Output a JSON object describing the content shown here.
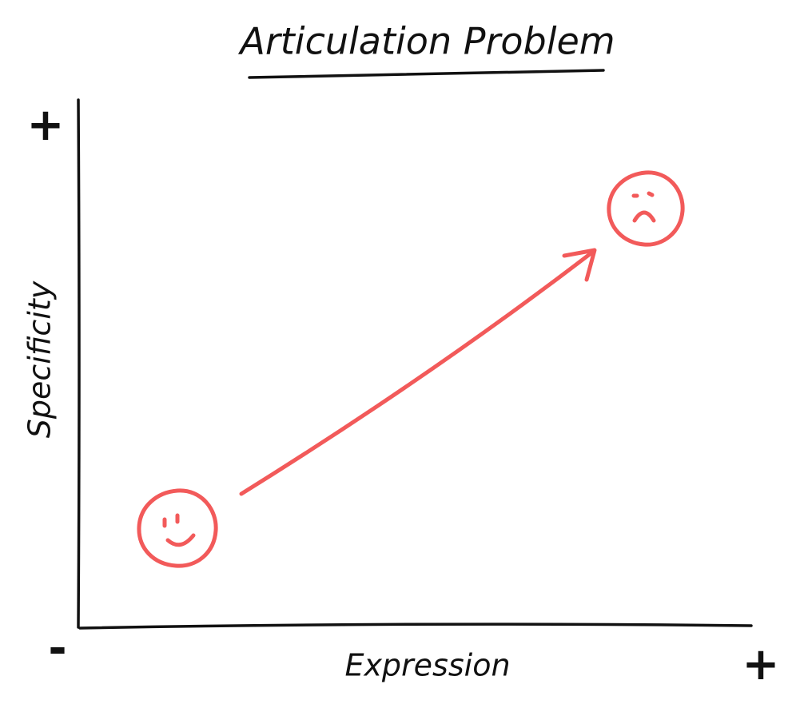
{
  "title": "Articulation Problem",
  "y_axis": {
    "label": "Specificity",
    "max": "+"
  },
  "x_axis": {
    "label": "Expression",
    "min": "-",
    "max": "+"
  }
}
